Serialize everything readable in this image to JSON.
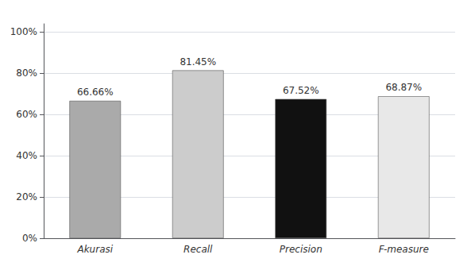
{
  "chart_data": {
    "type": "bar",
    "categories": [
      "Akurasi",
      "Recall",
      "Precision",
      "F-measure"
    ],
    "values": [
      66.66,
      81.45,
      67.52,
      68.87
    ],
    "value_labels": [
      "66.66%",
      "81.45%",
      "67.52%",
      "68.87%"
    ],
    "data_labels": true,
    "colors": [
      "#aaaaaa",
      "#cccccc",
      "#111111",
      "#e8e8e8"
    ],
    "ylim": [
      0,
      104
    ],
    "yticks": [
      {
        "value": 0,
        "label": "0%"
      },
      {
        "value": 20,
        "label": "20%"
      },
      {
        "value": 40,
        "label": "40%"
      },
      {
        "value": 60,
        "label": "60%"
      },
      {
        "value": 80,
        "label": "80%"
      },
      {
        "value": 100,
        "label": "100%"
      }
    ],
    "grid": true
  }
}
